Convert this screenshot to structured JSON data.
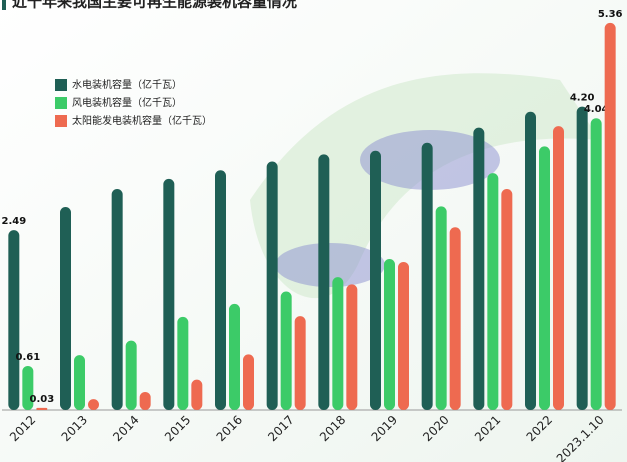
{
  "chart_data": {
    "type": "bar",
    "title": "近十年来我国主要可再生能源装机容量情况",
    "categories": [
      "2012",
      "2013",
      "2014",
      "2015",
      "2016",
      "2017",
      "2018",
      "2019",
      "2020",
      "2021",
      "2022",
      "2023.1.10"
    ],
    "ylim": [
      0,
      5.4
    ],
    "legend": "upper left",
    "series": [
      {
        "name": "水电装机容量（亿千瓦）",
        "color": "#1f5f55",
        "values": [
          2.49,
          2.81,
          3.06,
          3.2,
          3.32,
          3.44,
          3.54,
          3.59,
          3.7,
          3.91,
          4.13,
          4.2
        ],
        "value_labels": [
          "2.49",
          null,
          null,
          null,
          null,
          null,
          null,
          null,
          null,
          null,
          null,
          "4.20"
        ]
      },
      {
        "name": "风电装机容量（亿千瓦）",
        "color": "#3ccb68",
        "values": [
          0.61,
          0.76,
          0.96,
          1.29,
          1.47,
          1.64,
          1.84,
          2.09,
          2.82,
          3.28,
          3.65,
          4.04
        ],
        "value_labels": [
          "0.61",
          null,
          null,
          null,
          null,
          null,
          null,
          null,
          null,
          null,
          null,
          "4.04"
        ]
      },
      {
        "name": "太阳能发电装机容量（亿千瓦）",
        "color": "#ee6a50",
        "values": [
          0.03,
          0.15,
          0.25,
          0.42,
          0.77,
          1.3,
          1.74,
          2.05,
          2.53,
          3.06,
          3.93,
          5.36
        ],
        "value_labels": [
          "0.03",
          null,
          null,
          null,
          null,
          null,
          null,
          null,
          null,
          null,
          null,
          "5.36"
        ]
      }
    ]
  }
}
